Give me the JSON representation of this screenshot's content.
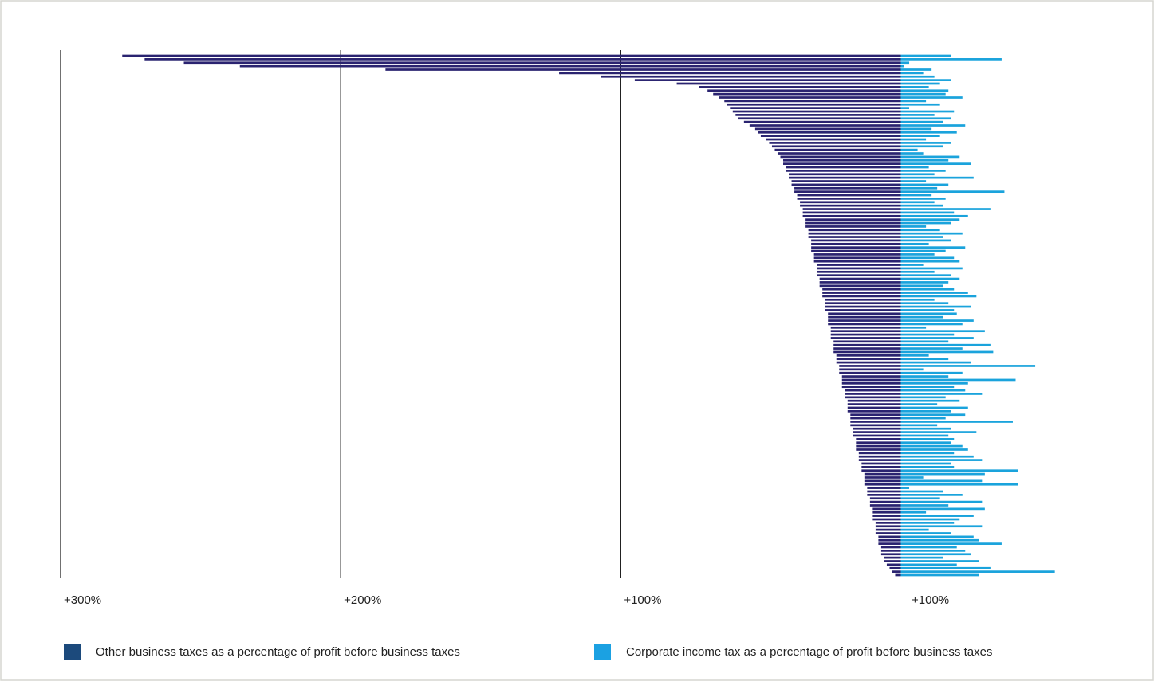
{
  "chart_data": {
    "type": "bar",
    "orientation": "horizontal-diverging",
    "xlim": [
      0,
      300
    ],
    "xticks": [
      {
        "value": 300,
        "label": "+300%"
      },
      {
        "value": 200,
        "label": "+200%"
      },
      {
        "value": 100,
        "label": "+100%"
      }
    ],
    "x2_label": "+100%",
    "series": [
      {
        "name": "Other business taxes as a percentage of profit before business taxes",
        "color": "#2a2370",
        "legend_color": "#1c4a7c",
        "side": "left",
        "values": [
          278,
          270,
          256,
          236,
          184,
          122,
          107,
          95,
          80,
          72,
          69,
          67,
          65,
          63,
          62,
          61,
          60,
          59,
          58,
          56,
          54,
          52,
          51,
          50,
          48,
          47,
          46,
          45,
          44,
          43,
          42,
          42,
          41,
          41,
          40,
          40,
          39,
          39,
          38,
          38,
          37,
          37,
          36,
          36,
          35,
          35,
          35,
          34,
          34,
          34,
          33,
          33,
          33,
          32,
          32,
          32,
          32,
          31,
          31,
          31,
          30,
          30,
          30,
          30,
          29,
          29,
          29,
          28,
          28,
          28,
          27,
          27,
          27,
          27,
          26,
          26,
          26,
          26,
          25,
          25,
          25,
          25,
          24,
          24,
          24,
          24,
          23,
          23,
          23,
          22,
          22,
          22,
          21,
          21,
          21,
          21,
          20,
          20,
          20,
          19,
          19,
          19,
          19,
          18,
          18,
          18,
          18,
          17,
          17,
          17,
          16,
          16,
          16,
          16,
          15,
          15,
          15,
          14,
          14,
          14,
          13,
          13,
          13,
          13,
          12,
          12,
          12,
          11,
          11,
          11,
          10,
          10,
          10,
          10,
          9,
          9,
          9,
          9,
          8,
          8,
          8,
          7,
          7,
          7,
          6,
          6,
          5,
          4,
          3,
          2
        ]
      },
      {
        "name": "Corporate income tax as a percentage of profit before business taxes",
        "color": "#1aa3dc",
        "legend_color": "#1ba1e2",
        "side": "right",
        "values": [
          18,
          36,
          3,
          1,
          11,
          8,
          12,
          18,
          14,
          10,
          17,
          16,
          22,
          9,
          14,
          3,
          19,
          12,
          18,
          15,
          23,
          11,
          20,
          14,
          9,
          18,
          15,
          6,
          8,
          21,
          17,
          25,
          10,
          16,
          12,
          26,
          9,
          17,
          13,
          37,
          11,
          16,
          12,
          15,
          32,
          19,
          24,
          21,
          18,
          9,
          14,
          22,
          15,
          18,
          10,
          23,
          16,
          12,
          19,
          21,
          8,
          22,
          12,
          18,
          21,
          17,
          15,
          19,
          24,
          27,
          12,
          17,
          25,
          19,
          20,
          15,
          26,
          22,
          9,
          30,
          19,
          26,
          17,
          32,
          22,
          33,
          10,
          17,
          25,
          48,
          8,
          22,
          17,
          41,
          24,
          19,
          23,
          29,
          16,
          21,
          13,
          24,
          18,
          23,
          16,
          40,
          13,
          18,
          27,
          17,
          19,
          18,
          22,
          24,
          19,
          26,
          29,
          18,
          19,
          42,
          30,
          8,
          29,
          42,
          3,
          15,
          22,
          14,
          29,
          17,
          30,
          9,
          26,
          21,
          19,
          29,
          10,
          18,
          26,
          28,
          36,
          20,
          23,
          25,
          15,
          28,
          20,
          32,
          55,
          28
        ]
      }
    ]
  }
}
